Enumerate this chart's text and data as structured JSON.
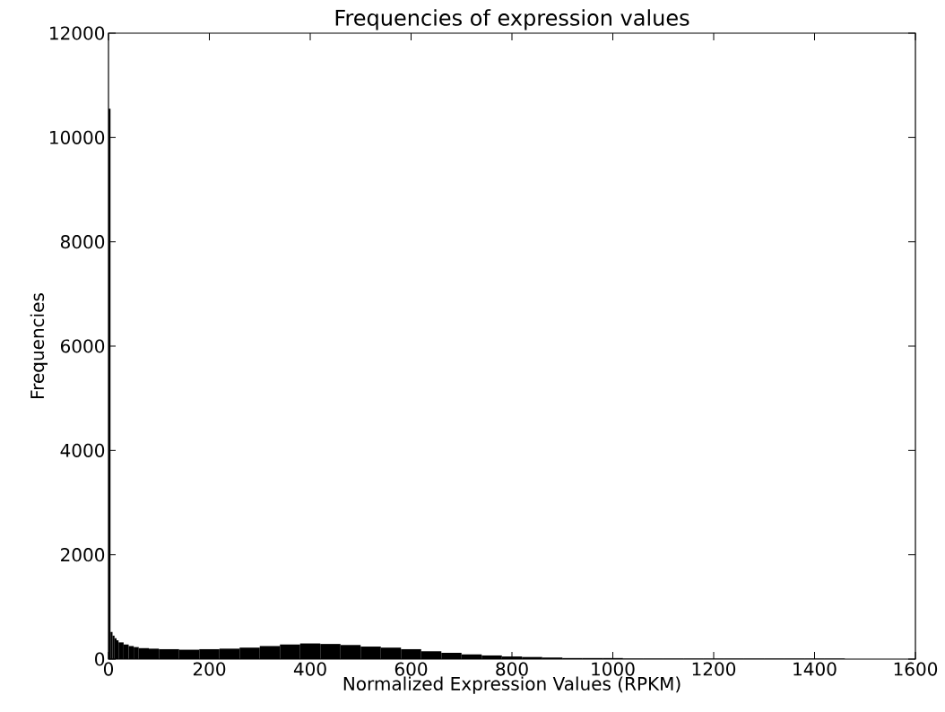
{
  "chart_data": {
    "type": "histogram",
    "title": "Frequencies of expression values",
    "xlabel": "Normalized Expression Values (RPKM)",
    "ylabel": "Frequencies",
    "color": "#000000",
    "bins": [
      0,
      4,
      8,
      12,
      16,
      20,
      30,
      40,
      50,
      60,
      80,
      100,
      140,
      180,
      220,
      260,
      300,
      340,
      380,
      420,
      460,
      500,
      540,
      580,
      620,
      660,
      700,
      740,
      780,
      820,
      860,
      900,
      940,
      980,
      1020,
      1060,
      1100,
      1140,
      1180,
      1220,
      1260,
      1300,
      1340,
      1380,
      1420,
      1460
    ],
    "values": [
      10550,
      520,
      450,
      400,
      360,
      320,
      280,
      250,
      230,
      210,
      200,
      190,
      180,
      190,
      200,
      220,
      250,
      280,
      300,
      290,
      270,
      240,
      220,
      190,
      150,
      120,
      90,
      70,
      50,
      40,
      30,
      20,
      20,
      20,
      10,
      10,
      10,
      10,
      10,
      10,
      10,
      10,
      10,
      10,
      10
    ],
    "xlim": [
      0,
      1600
    ],
    "ylim": [
      0,
      12000
    ],
    "xticks": [
      0,
      200,
      400,
      600,
      800,
      1000,
      1200,
      1400,
      1600
    ],
    "yticks": [
      0,
      2000,
      4000,
      6000,
      8000,
      10000,
      12000
    ],
    "grid": false
  }
}
